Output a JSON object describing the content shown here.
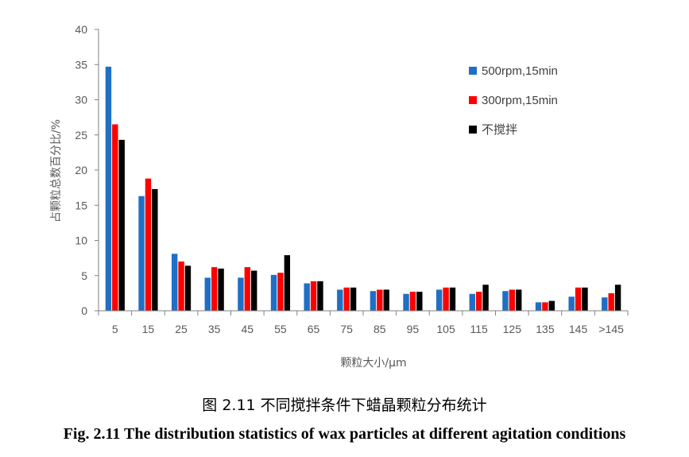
{
  "chart_data": {
    "type": "bar",
    "title": "",
    "xlabel": "颗粒大小/μm",
    "ylabel": "占颗粒总数百分比/%",
    "ylim": [
      0,
      40
    ],
    "yticks": [
      0,
      5,
      10,
      15,
      20,
      25,
      30,
      35,
      40
    ],
    "grid": false,
    "legend_position": "top-right",
    "categories": [
      "5",
      "15",
      "25",
      "35",
      "45",
      "55",
      "65",
      "75",
      "85",
      "95",
      "105",
      "115",
      "125",
      "135",
      "145",
      ">145"
    ],
    "series": [
      {
        "name": "500rpm,15min",
        "color": "#1f6fc5",
        "values": [
          34.7,
          16.3,
          8.1,
          4.7,
          4.7,
          5.1,
          3.9,
          3.0,
          2.8,
          2.4,
          3.0,
          2.4,
          2.8,
          1.2,
          2.0,
          1.9
        ]
      },
      {
        "name": "300rpm,15min",
        "color": "#ff0000",
        "values": [
          26.5,
          18.8,
          7.0,
          6.2,
          6.2,
          5.4,
          4.2,
          3.3,
          3.0,
          2.7,
          3.3,
          2.7,
          3.0,
          1.2,
          3.3,
          2.5
        ]
      },
      {
        "name": "不搅拌",
        "color": "#000000",
        "values": [
          24.3,
          17.3,
          6.4,
          6.0,
          5.7,
          7.9,
          4.2,
          3.3,
          3.0,
          2.7,
          3.3,
          3.7,
          3.0,
          1.4,
          3.3,
          3.7
        ]
      }
    ]
  },
  "caption": {
    "chinese": "图 2.11  不同搅拌条件下蜡晶颗粒分布统计",
    "english": "Fig. 2.11 The distribution statistics of wax particles at different agitation conditions"
  }
}
